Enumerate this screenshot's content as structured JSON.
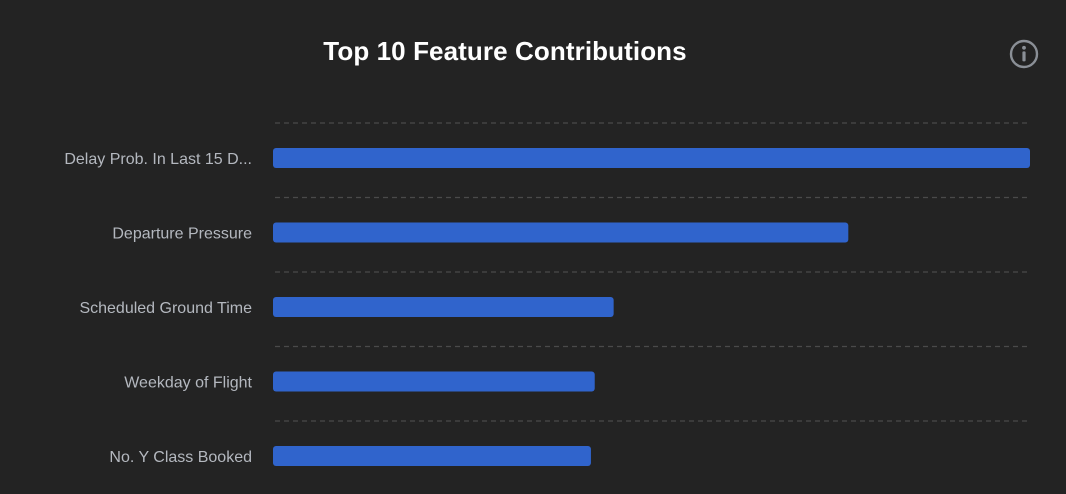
{
  "chart_data": {
    "type": "bar",
    "orientation": "horizontal",
    "title": "Top 10 Feature Contributions",
    "categories": [
      "Delay Prob. In Last 15 D...",
      "Departure Pressure",
      "Scheduled Ground Time",
      "Weekday of Flight",
      "No. Y Class Booked"
    ],
    "values": [
      1.0,
      0.76,
      0.45,
      0.425,
      0.42
    ],
    "xlim": [
      0,
      1.0
    ],
    "grid": true,
    "grid_style": "dashed horizontal separators",
    "legend": "none",
    "bar_color": "#3064cc"
  },
  "info_icon": "info-circle-icon",
  "colors": {
    "background": "#232323",
    "bar": "#3064cc",
    "grid": "#4a4a4a",
    "label": "#b4b8bf",
    "title": "#ffffff",
    "icon": "#8a8f96"
  }
}
